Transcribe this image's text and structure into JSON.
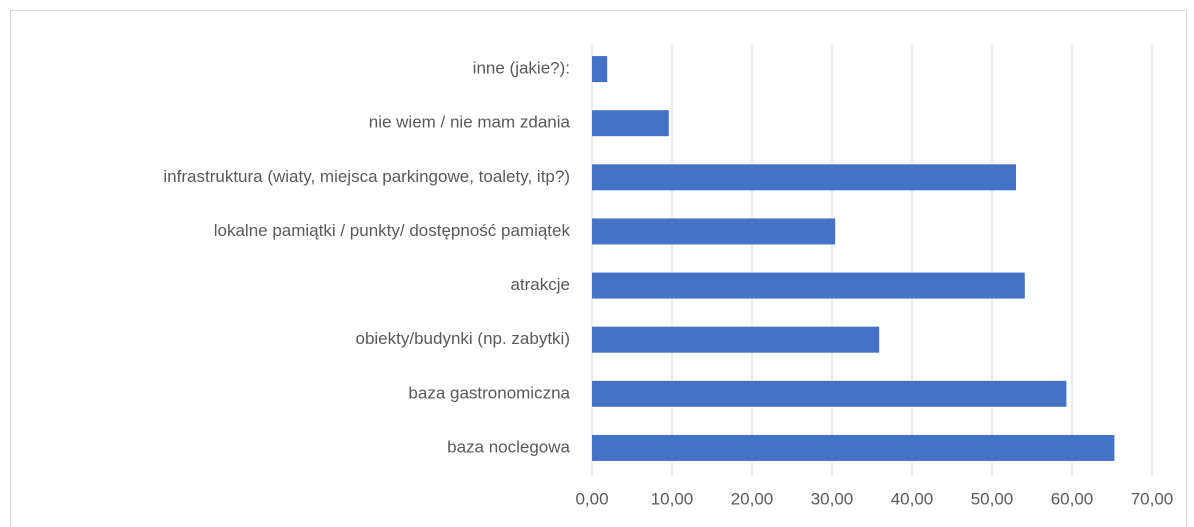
{
  "chart_data": {
    "type": "bar",
    "orientation": "horizontal",
    "categories": [
      "inne (jakie?):",
      "nie wiem / nie mam zdania",
      "infrastruktura (wiaty, miejsca parkingowe, toalety, itp?)",
      "lokalne pamiątki / punkty/ dostępność pamiątek",
      "atrakcje",
      "obiekty/budynki (np. zabytki)",
      "baza gastronomiczna",
      "baza noclegowa"
    ],
    "values": [
      1.9,
      9.6,
      53.0,
      30.4,
      54.1,
      35.9,
      59.3,
      65.3
    ],
    "color": "#4472c4",
    "xlim": [
      0,
      70
    ],
    "xticks": [
      {
        "value": 0,
        "label": "0,00"
      },
      {
        "value": 10,
        "label": "10,00"
      },
      {
        "value": 20,
        "label": "20,00"
      },
      {
        "value": 30,
        "label": "30,00"
      },
      {
        "value": 40,
        "label": "40,00"
      },
      {
        "value": 50,
        "label": "50,00"
      },
      {
        "value": 60,
        "label": "60,00"
      },
      {
        "value": 70,
        "label": "70,00"
      }
    ],
    "grid": true
  }
}
